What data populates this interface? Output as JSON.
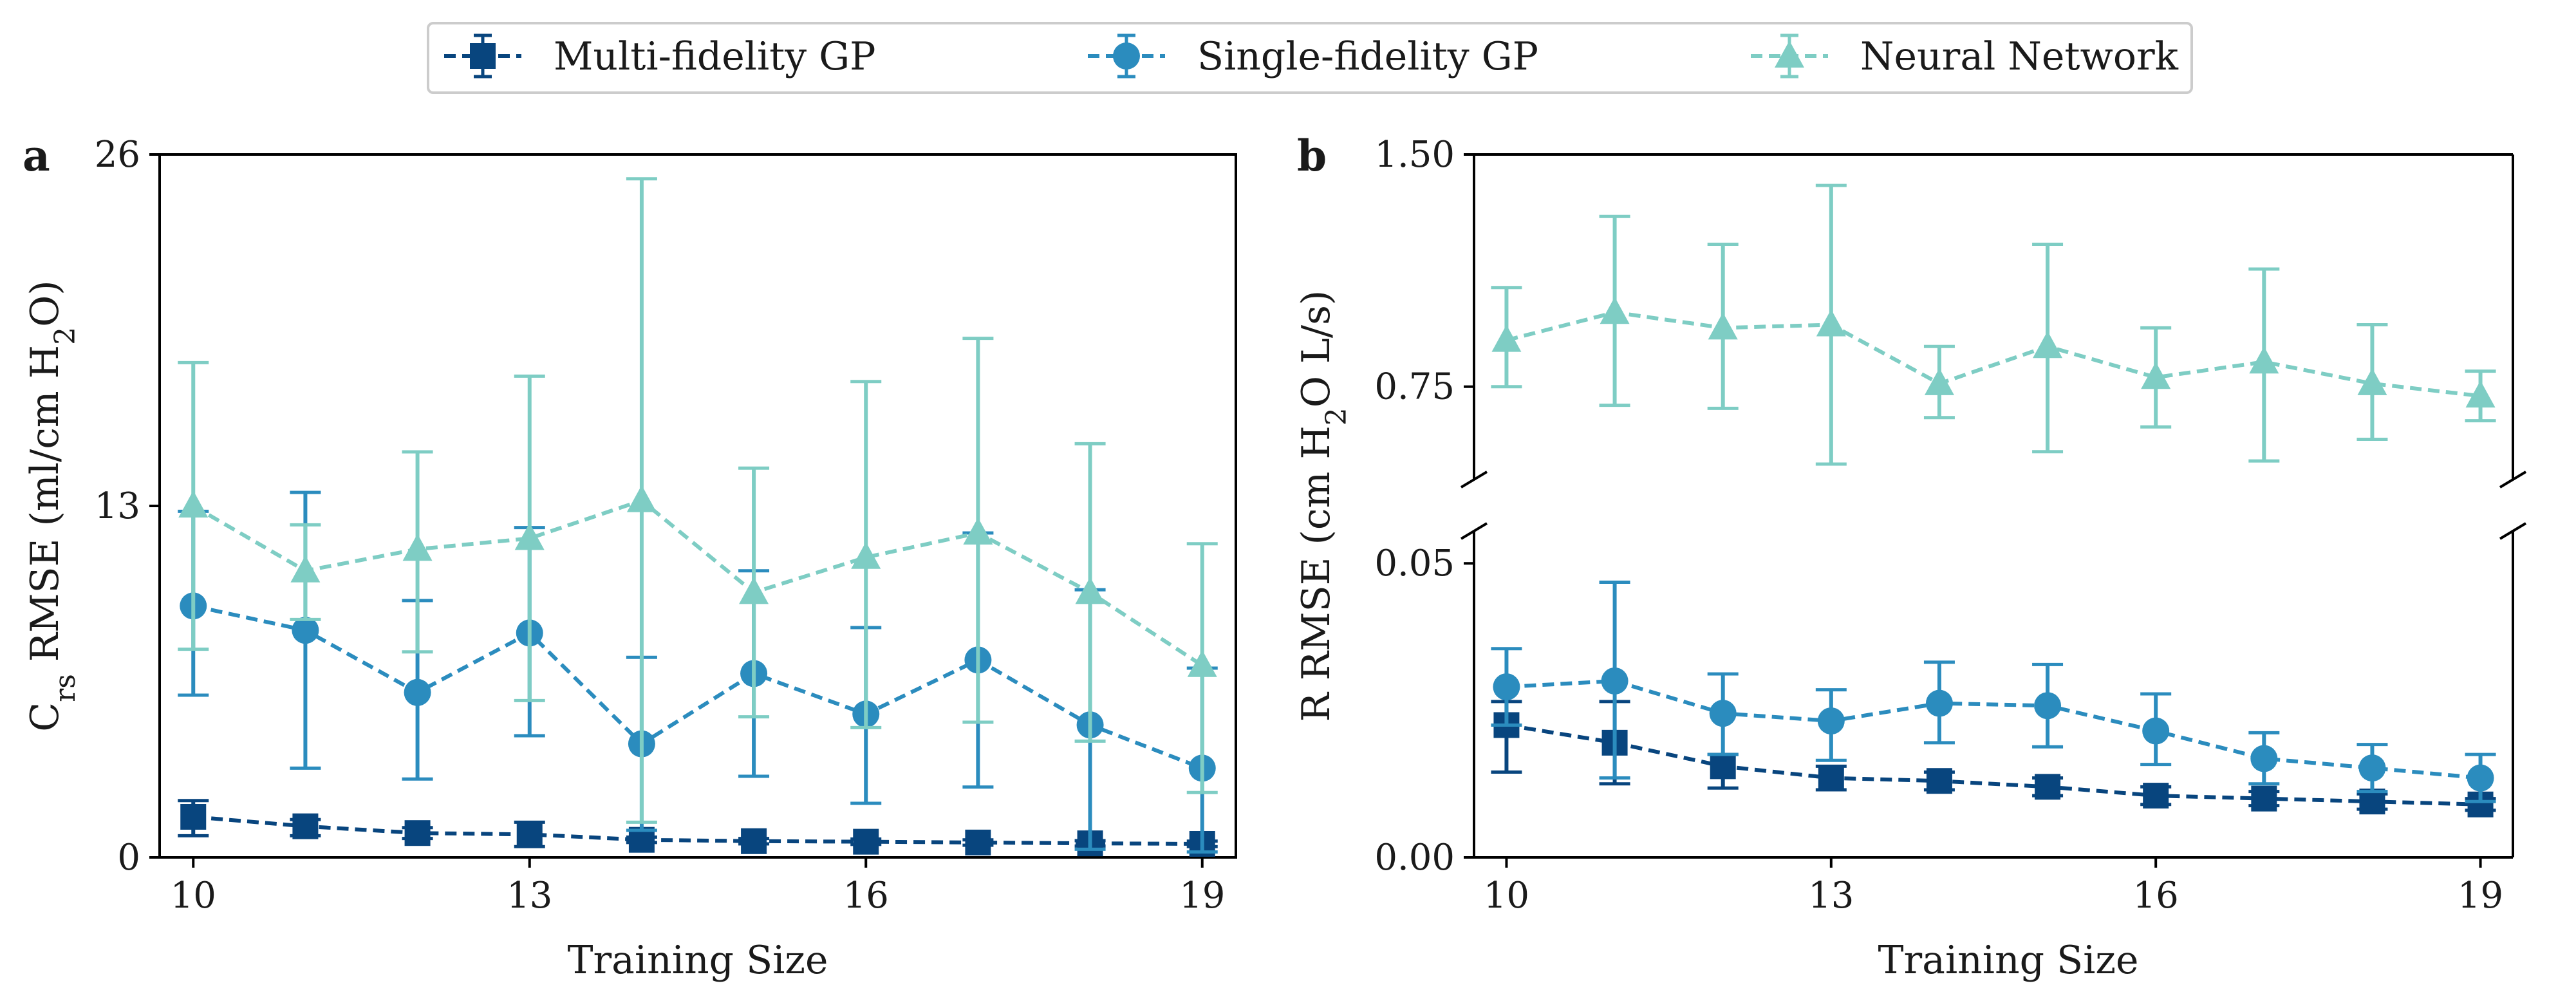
{
  "colors": {
    "multi": "#08457e",
    "single": "#2b8cbe",
    "nn": "#7ecdc4"
  },
  "legend": {
    "items": [
      {
        "label": "Multi-fidelity GP",
        "series": "multi",
        "marker": "square"
      },
      {
        "label": "Single-fidelity GP",
        "series": "single",
        "marker": "circle"
      },
      {
        "label": "Neural Network",
        "series": "nn",
        "marker": "triangle"
      }
    ]
  },
  "chart_data": [
    {
      "type": "line",
      "panel_label": "a",
      "xlabel": "Training Size",
      "ylabel": "C_rs RMSE (ml/cm H_2O)",
      "ylabel_parts": {
        "main": "C",
        "sub": "rs",
        "mid": " RMSE (ml/cm H",
        "sub2": "2",
        "end": "O)"
      },
      "xlim": [
        9.7,
        19.3
      ],
      "ylim": [
        0,
        26
      ],
      "xticks": [
        10,
        13,
        16,
        19
      ],
      "yticks": [
        0,
        13,
        26
      ],
      "x": [
        10,
        11,
        12,
        13,
        14,
        15,
        16,
        17,
        18,
        19
      ],
      "series": [
        {
          "key": "multi",
          "name": "Multi-fidelity GP",
          "marker": "square",
          "values": [
            1.5,
            1.15,
            0.9,
            0.85,
            0.65,
            0.6,
            0.58,
            0.55,
            0.52,
            0.5
          ],
          "err_low": [
            0.8,
            0.8,
            0.7,
            0.4,
            0.55,
            0.5,
            0.48,
            0.45,
            0.42,
            0.4
          ],
          "err_high": [
            2.1,
            1.4,
            1.1,
            1.3,
            0.75,
            0.7,
            0.68,
            0.65,
            0.62,
            0.6
          ]
        },
        {
          "key": "single",
          "name": "Single-fidelity GP",
          "marker": "circle",
          "values": [
            9.3,
            8.4,
            6.1,
            8.3,
            4.2,
            6.8,
            5.3,
            7.3,
            4.9,
            3.3
          ],
          "err_low": [
            6.0,
            3.3,
            2.9,
            4.5,
            1.0,
            3.0,
            2.0,
            2.6,
            0.3,
            0.2
          ],
          "err_high": [
            12.8,
            13.5,
            9.5,
            12.2,
            7.4,
            10.6,
            8.5,
            12.0,
            9.9,
            7.0
          ]
        },
        {
          "key": "nn",
          "name": "Neural Network",
          "marker": "triangle",
          "values": [
            13.0,
            10.6,
            11.4,
            11.8,
            13.2,
            9.8,
            11.1,
            12.0,
            9.8,
            7.1
          ],
          "err_low": [
            7.7,
            8.8,
            7.6,
            5.8,
            1.3,
            5.2,
            4.8,
            5.0,
            4.3,
            2.4
          ],
          "err_high": [
            18.3,
            12.3,
            15.0,
            17.8,
            25.1,
            14.4,
            17.6,
            19.2,
            15.3,
            11.6
          ]
        }
      ]
    },
    {
      "type": "line",
      "panel_label": "b",
      "xlabel": "Training Size",
      "ylabel": "R  RMSE (cm H_2O L/s)",
      "ylabel_parts": {
        "main": "R  RMSE (cm H",
        "sub": "2",
        "end": "O L/s)"
      },
      "broken_axis": true,
      "xlim": [
        9.7,
        19.3
      ],
      "ylim_lower": [
        0.0,
        0.05
      ],
      "ylim_upper": [
        0.45,
        1.5
      ],
      "yticks_lower": [
        "0.00",
        "0.05"
      ],
      "yticks_upper": [
        "0.75",
        "1.50"
      ],
      "xticks": [
        10,
        13,
        16,
        19
      ],
      "x": [
        10,
        11,
        12,
        13,
        14,
        15,
        16,
        17,
        18,
        19
      ],
      "series": [
        {
          "key": "multi",
          "name": "Multi-fidelity GP",
          "marker": "square",
          "values": [
            0.0225,
            0.0195,
            0.0155,
            0.0135,
            0.013,
            0.012,
            0.0105,
            0.01,
            0.0095,
            0.009
          ],
          "err_low": [
            0.0145,
            0.0125,
            0.0118,
            0.0115,
            0.0115,
            0.0105,
            0.009,
            0.0088,
            0.0082,
            0.008
          ],
          "err_high": [
            0.0265,
            0.0265,
            0.0175,
            0.0155,
            0.0145,
            0.0135,
            0.012,
            0.0112,
            0.0108,
            0.01
          ]
        },
        {
          "key": "single",
          "name": "Single-fidelity GP",
          "marker": "circle",
          "values": [
            0.029,
            0.03,
            0.0245,
            0.0232,
            0.0262,
            0.0258,
            0.0215,
            0.0168,
            0.0152,
            0.0135
          ],
          "err_low": [
            0.0225,
            0.0135,
            0.0175,
            0.0165,
            0.0195,
            0.0188,
            0.0158,
            0.0125,
            0.0112,
            0.0095
          ],
          "err_high": [
            0.0355,
            0.0468,
            0.0312,
            0.0285,
            0.0332,
            0.0328,
            0.0278,
            0.0212,
            0.0192,
            0.0175
          ]
        },
        {
          "key": "nn",
          "name": "Neural Network",
          "marker": "triangle",
          "values": [
            0.9,
            0.99,
            0.94,
            0.95,
            0.76,
            0.88,
            0.78,
            0.83,
            0.76,
            0.72
          ],
          "err_low": [
            0.75,
            0.69,
            0.68,
            0.5,
            0.65,
            0.54,
            0.62,
            0.51,
            0.58,
            0.64
          ],
          "err_high": [
            1.07,
            1.3,
            1.21,
            1.4,
            0.88,
            1.21,
            0.94,
            1.13,
            0.95,
            0.8
          ]
        }
      ]
    }
  ]
}
